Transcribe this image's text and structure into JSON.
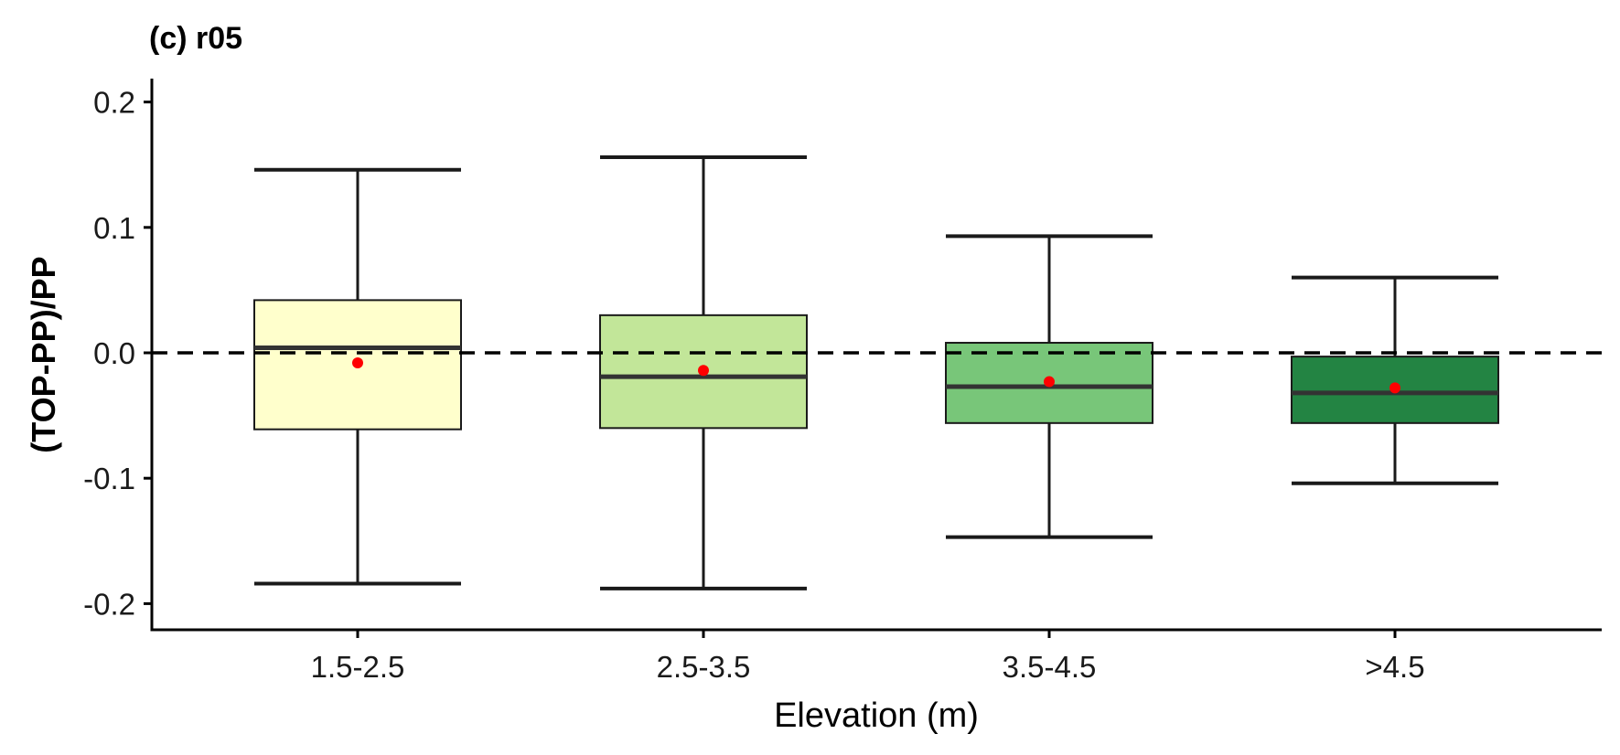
{
  "chart_data": {
    "type": "box",
    "title": "(c) r05",
    "xlabel": "Elevation (m)",
    "ylabel": "(TOP-PP)/PP",
    "ylim": [
      -0.22,
      0.22
    ],
    "yticks": [
      0.2,
      0.1,
      0.0,
      -0.1,
      -0.2
    ],
    "ytick_labels": [
      "0.2",
      "0.1",
      "0.0",
      "-0.1",
      "-0.2"
    ],
    "categories": [
      "1.5-2.5",
      "2.5-3.5",
      "3.5-4.5",
      ">4.5"
    ],
    "boxes": [
      {
        "category": "1.5-2.5",
        "whisker_low": -0.184,
        "q1": -0.061,
        "median": 0.004,
        "q3": 0.042,
        "whisker_high": 0.146,
        "mean": -0.008,
        "fill": "#ffffcc"
      },
      {
        "category": "2.5-3.5",
        "whisker_low": -0.188,
        "q1": -0.06,
        "median": -0.019,
        "q3": 0.03,
        "whisker_high": 0.156,
        "mean": -0.014,
        "fill": "#c2e699"
      },
      {
        "category": "3.5-4.5",
        "whisker_low": -0.147,
        "q1": -0.056,
        "median": -0.027,
        "q3": 0.008,
        "whisker_high": 0.093,
        "mean": -0.023,
        "fill": "#78c679"
      },
      {
        "category": ">4.5",
        "whisker_low": -0.104,
        "q1": -0.056,
        "median": -0.032,
        "q3": -0.003,
        "whisker_high": 0.06,
        "mean": -0.028,
        "fill": "#238443"
      }
    ],
    "reference_line": {
      "y": 0.0,
      "style": "dashed"
    },
    "mean_marker_color": "#ff0000",
    "grid": false,
    "legend": "none"
  }
}
